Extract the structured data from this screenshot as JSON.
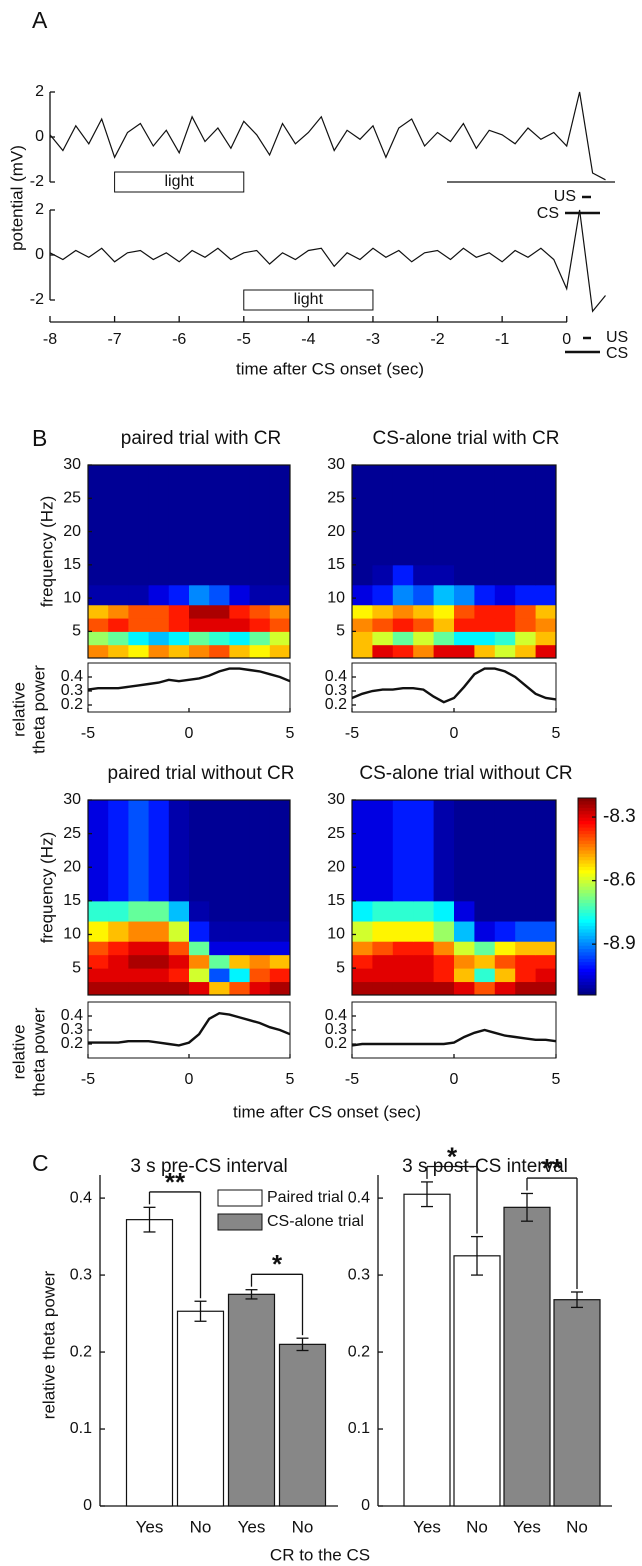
{
  "panel_labels": [
    "A",
    "B",
    "C"
  ],
  "figure_b_xlabel": "time after CS onset (sec)",
  "chart_data": [
    {
      "type": "trace",
      "xlabel": "time after CS onset (sec)",
      "ylabel": "potential (mV)",
      "color": "#111111",
      "x": [
        -8,
        -7.8,
        -7.6,
        -7.4,
        -7.2,
        -7,
        -6.8,
        -6.6,
        -6.4,
        -6.2,
        -6,
        -5.8,
        -5.6,
        -5.4,
        -5.2,
        -5,
        -4.8,
        -4.6,
        -4.4,
        -4.2,
        -4,
        -3.8,
        -3.6,
        -3.4,
        -3.2,
        -3,
        -2.8,
        -2.6,
        -2.4,
        -2.2,
        -2,
        -1.8,
        -1.6,
        -1.4,
        -1.2,
        -1,
        -0.8,
        -0.6,
        -0.4,
        -0.2,
        0,
        0.2,
        0.4,
        0.6
      ],
      "xlim": [
        -8,
        0.67
      ],
      "xticks": [
        -8,
        -7,
        -6,
        -5,
        -4,
        -3,
        -2,
        -1,
        0
      ],
      "ylim": [
        -2,
        2
      ],
      "yticks": [
        -2,
        0,
        2
      ],
      "series": [
        {
          "values": [
            0.1,
            -0.6,
            0.5,
            -0.3,
            0.8,
            -0.9,
            0.2,
            0.6,
            -0.4,
            0.3,
            -0.7,
            0.9,
            -0.2,
            0.4,
            -0.5,
            0.7,
            0.1,
            -0.8,
            0.6,
            -0.3,
            0.2,
            0.9,
            -0.6,
            0.3,
            -0.1,
            0.5,
            -0.9,
            0.4,
            0.8,
            -0.4,
            0.2,
            -0.2,
            0.6,
            -0.5,
            0.3,
            0.1,
            -0.3,
            0.4,
            -0.1,
            0.2,
            -0.4,
            2.0,
            -1.6,
            -1.9
          ],
          "light": {
            "label": "light",
            "start": -7,
            "end": -5
          },
          "markers": [
            "US",
            "CS"
          ]
        },
        {
          "values": [
            0.1,
            -0.2,
            0.2,
            -0.1,
            0.3,
            -0.3,
            0.1,
            0.2,
            -0.2,
            0.1,
            -0.3,
            0.2,
            -0.1,
            0.3,
            -0.2,
            0.1,
            0.2,
            -0.4,
            0.1,
            -0.2,
            0.2,
            0.3,
            -0.5,
            0.1,
            -0.2,
            0.3,
            -0.1,
            0.2,
            -0.3,
            0.1,
            0.2,
            -0.2,
            0.3,
            -0.1,
            0.1,
            -0.3,
            0.2,
            -0.1,
            0.3,
            -0.2,
            -1.5,
            2.0,
            -2.5,
            -1.8
          ],
          "light": {
            "label": "light",
            "start": -5,
            "end": -3
          },
          "markers": [
            "US",
            "CS"
          ]
        }
      ]
    },
    {
      "type": "heatmap",
      "title": "paired trial with CR",
      "ylabel": "frequency (Hz)",
      "x": [
        -5,
        -4,
        -3,
        -2,
        -1,
        0,
        1,
        2,
        3,
        4,
        5
      ],
      "y": [
        1,
        3,
        5,
        7,
        9,
        12,
        15,
        30
      ],
      "ylim": [
        1,
        30
      ],
      "yticks": [
        5,
        10,
        15,
        20,
        25,
        30
      ],
      "z": [
        [
          -8.45,
          -8.5,
          -8.55,
          -8.45,
          -8.5,
          -8.45,
          -8.4,
          -8.5,
          -8.55,
          -8.5
        ],
        [
          -8.65,
          -8.7,
          -8.8,
          -8.85,
          -8.8,
          -8.7,
          -8.75,
          -8.8,
          -8.7,
          -8.6
        ],
        [
          -8.4,
          -8.35,
          -8.4,
          -8.4,
          -8.35,
          -8.3,
          -8.3,
          -8.3,
          -8.35,
          -8.4
        ],
        [
          -8.5,
          -8.45,
          -8.4,
          -8.4,
          -8.35,
          -8.25,
          -8.25,
          -8.35,
          -8.4,
          -8.45
        ],
        [
          -9.1,
          -9.1,
          -9.1,
          -9.05,
          -9.0,
          -8.9,
          -8.95,
          -9.05,
          -9.1,
          -9.1
        ],
        [
          -9.12,
          -9.12,
          -9.12,
          -9.12,
          -9.12,
          -9.12,
          -9.12,
          -9.12,
          -9.12,
          -9.12
        ],
        [
          -9.12,
          -9.12,
          -9.12,
          -9.12,
          -9.12,
          -9.12,
          -9.12,
          -9.12,
          -9.12,
          -9.12
        ]
      ]
    },
    {
      "type": "heatmap",
      "title": "CS-alone trial with CR",
      "x": [
        -5,
        -4,
        -3,
        -2,
        -1,
        0,
        1,
        2,
        3,
        4,
        5
      ],
      "y": [
        1,
        3,
        5,
        7,
        9,
        12,
        15,
        30
      ],
      "ylim": [
        1,
        30
      ],
      "yticks": [
        5,
        10,
        15,
        20,
        25,
        30
      ],
      "z": [
        [
          -8.5,
          -8.3,
          -8.35,
          -8.45,
          -8.3,
          -8.3,
          -8.5,
          -8.6,
          -8.5,
          -8.3
        ],
        [
          -8.5,
          -8.6,
          -8.7,
          -8.6,
          -8.7,
          -8.8,
          -8.8,
          -8.75,
          -8.6,
          -8.5
        ],
        [
          -8.45,
          -8.4,
          -8.35,
          -8.4,
          -8.5,
          -8.35,
          -8.35,
          -8.35,
          -8.4,
          -8.45
        ],
        [
          -8.55,
          -8.5,
          -8.45,
          -8.5,
          -8.55,
          -8.4,
          -8.35,
          -8.35,
          -8.4,
          -8.5
        ],
        [
          -9.05,
          -9.0,
          -8.9,
          -8.95,
          -8.85,
          -8.9,
          -9.0,
          -9.05,
          -9.0,
          -9.0
        ],
        [
          -9.12,
          -9.1,
          -9.0,
          -9.1,
          -9.1,
          -9.12,
          -9.12,
          -9.12,
          -9.12,
          -9.12
        ],
        [
          -9.12,
          -9.12,
          -9.12,
          -9.12,
          -9.12,
          -9.12,
          -9.12,
          -9.12,
          -9.12,
          -9.12
        ]
      ]
    },
    {
      "type": "heatmap",
      "title": "paired trial without CR",
      "ylabel": "frequency (Hz)",
      "x": [
        -5,
        -4,
        -3,
        -2,
        -1,
        0,
        1,
        2,
        3,
        4,
        5
      ],
      "y": [
        1,
        3,
        5,
        7,
        9,
        12,
        15,
        30
      ],
      "ylim": [
        1,
        30
      ],
      "yticks": [
        5,
        10,
        15,
        20,
        25,
        30
      ],
      "z": [
        [
          -8.25,
          -8.25,
          -8.25,
          -8.25,
          -8.25,
          -8.3,
          -8.5,
          -8.4,
          -8.3,
          -8.25
        ],
        [
          -8.3,
          -8.3,
          -8.3,
          -8.3,
          -8.35,
          -8.6,
          -8.95,
          -8.8,
          -8.4,
          -8.35
        ],
        [
          -8.35,
          -8.3,
          -8.25,
          -8.25,
          -8.3,
          -8.45,
          -8.7,
          -8.5,
          -8.45,
          -8.5
        ],
        [
          -8.4,
          -8.35,
          -8.3,
          -8.3,
          -8.4,
          -8.7,
          -9.05,
          -9.05,
          -9.05,
          -9.05
        ],
        [
          -8.55,
          -8.5,
          -8.45,
          -8.45,
          -8.6,
          -9.0,
          -9.1,
          -9.1,
          -9.1,
          -9.1
        ],
        [
          -8.75,
          -8.75,
          -8.7,
          -8.7,
          -8.85,
          -9.1,
          -9.12,
          -9.12,
          -9.12,
          -9.12
        ],
        [
          -9.05,
          -9.0,
          -8.95,
          -9.0,
          -9.1,
          -9.12,
          -9.12,
          -9.12,
          -9.12,
          -9.12
        ]
      ]
    },
    {
      "type": "heatmap",
      "title": "CS-alone trial without CR",
      "x": [
        -5,
        -4,
        -3,
        -2,
        -1,
        0,
        1,
        2,
        3,
        4,
        5
      ],
      "y": [
        1,
        3,
        5,
        7,
        9,
        12,
        15,
        30
      ],
      "ylim": [
        1,
        30
      ],
      "yticks": [
        5,
        10,
        15,
        20,
        25,
        30
      ],
      "z": [
        [
          -8.25,
          -8.25,
          -8.25,
          -8.25,
          -8.25,
          -8.3,
          -8.4,
          -8.3,
          -8.25,
          -8.25
        ],
        [
          -8.3,
          -8.3,
          -8.3,
          -8.3,
          -8.35,
          -8.5,
          -8.75,
          -8.5,
          -8.35,
          -8.3
        ],
        [
          -8.35,
          -8.3,
          -8.3,
          -8.3,
          -8.35,
          -8.45,
          -8.5,
          -8.4,
          -8.35,
          -8.35
        ],
        [
          -8.45,
          -8.4,
          -8.35,
          -8.35,
          -8.45,
          -8.6,
          -8.7,
          -8.55,
          -8.5,
          -8.5
        ],
        [
          -8.6,
          -8.55,
          -8.55,
          -8.55,
          -8.65,
          -8.85,
          -9.05,
          -9.0,
          -8.95,
          -8.95
        ],
        [
          -8.8,
          -8.75,
          -8.75,
          -8.75,
          -8.8,
          -9.05,
          -9.12,
          -9.12,
          -9.12,
          -9.12
        ],
        [
          -9.05,
          -9.05,
          -9.0,
          -9.0,
          -9.1,
          -9.12,
          -9.12,
          -9.12,
          -9.12,
          -9.12
        ]
      ]
    },
    {
      "type": "line",
      "ylabel": [
        "relative",
        "theta power"
      ],
      "color": "#111111",
      "x": [
        -5,
        -4.5,
        -4,
        -3.5,
        -3,
        -2.5,
        -2,
        -1.5,
        -1,
        -0.5,
        0,
        0.5,
        1,
        1.5,
        2,
        2.5,
        3,
        3.5,
        4,
        4.5,
        5
      ],
      "values": [
        0.31,
        0.32,
        0.32,
        0.32,
        0.33,
        0.34,
        0.35,
        0.36,
        0.38,
        0.37,
        0.38,
        0.39,
        0.41,
        0.44,
        0.46,
        0.46,
        0.45,
        0.44,
        0.42,
        0.4,
        0.37
      ],
      "xlim": [
        -5,
        5
      ],
      "xticks": [
        -5,
        0,
        5
      ],
      "ylim": [
        0.15,
        0.5
      ],
      "yticks": [
        0.2,
        0.3,
        0.4
      ]
    },
    {
      "type": "line",
      "color": "#111111",
      "x": [
        -5,
        -4.5,
        -4,
        -3.5,
        -3,
        -2.5,
        -2,
        -1.5,
        -1,
        -0.5,
        0,
        0.5,
        1,
        1.5,
        2,
        2.5,
        3,
        3.5,
        4,
        4.5,
        5
      ],
      "values": [
        0.25,
        0.28,
        0.3,
        0.31,
        0.31,
        0.32,
        0.32,
        0.31,
        0.26,
        0.22,
        0.25,
        0.33,
        0.42,
        0.46,
        0.46,
        0.44,
        0.4,
        0.34,
        0.28,
        0.25,
        0.24
      ],
      "xlim": [
        -5,
        5
      ],
      "xticks": [
        -5,
        0,
        5
      ],
      "ylim": [
        0.15,
        0.5
      ],
      "yticks": [
        0.2,
        0.3,
        0.4
      ]
    },
    {
      "type": "line",
      "ylabel": [
        "relative",
        "theta power"
      ],
      "color": "#111111",
      "x": [
        -5,
        -4.5,
        -4,
        -3.5,
        -3,
        -2.5,
        -2,
        -1.5,
        -1,
        -0.5,
        0,
        0.5,
        1,
        1.5,
        2,
        2.5,
        3,
        3.5,
        4,
        4.5,
        5
      ],
      "values": [
        0.21,
        0.21,
        0.21,
        0.21,
        0.22,
        0.22,
        0.22,
        0.21,
        0.2,
        0.19,
        0.21,
        0.27,
        0.38,
        0.42,
        0.41,
        0.39,
        0.37,
        0.35,
        0.32,
        0.3,
        0.27
      ],
      "xlim": [
        -5,
        5
      ],
      "xticks": [
        -5,
        0,
        5
      ],
      "ylim": [
        0.1,
        0.5
      ],
      "yticks": [
        0.2,
        0.3,
        0.4
      ]
    },
    {
      "type": "line",
      "color": "#111111",
      "x": [
        -5,
        -4.5,
        -4,
        -3.5,
        -3,
        -2.5,
        -2,
        -1.5,
        -1,
        -0.5,
        0,
        0.5,
        1,
        1.5,
        2,
        2.5,
        3,
        3.5,
        4,
        4.5,
        5
      ],
      "values": [
        0.19,
        0.2,
        0.2,
        0.2,
        0.2,
        0.2,
        0.2,
        0.2,
        0.2,
        0.2,
        0.21,
        0.25,
        0.28,
        0.3,
        0.28,
        0.26,
        0.25,
        0.24,
        0.23,
        0.23,
        0.22
      ],
      "xlim": [
        -5,
        5
      ],
      "xticks": [
        -5,
        0,
        5
      ],
      "ylim": [
        0.1,
        0.5
      ],
      "yticks": [
        0.2,
        0.3,
        0.4
      ]
    },
    {
      "type": "colorbar",
      "colormap": "jet",
      "clim": [
        -9.14,
        -8.21
      ],
      "ticks": [
        -8.3,
        -8.6,
        -8.9
      ]
    },
    {
      "type": "bar",
      "title": "3 s pre-CS interval",
      "ylabel": "relative theta power",
      "xlabel": "CR to the CS",
      "legend": "top-right",
      "categories": [
        "Yes",
        "No",
        "Yes",
        "No"
      ],
      "ylim": [
        0,
        0.43
      ],
      "yticks": [
        0,
        0.1,
        0.2,
        0.3,
        0.4
      ],
      "series": [
        {
          "name": "Paired trial",
          "color": "#ffffff",
          "values": [
            0.372,
            0.253,
            null,
            null
          ],
          "errors": [
            0.016,
            0.013,
            null,
            null
          ]
        },
        {
          "name": "CS-alone trial",
          "color": "#878787",
          "values": [
            null,
            null,
            0.275,
            0.21
          ],
          "errors": [
            null,
            null,
            0.006,
            0.008
          ]
        }
      ],
      "significance": [
        {
          "from": 0,
          "to": 1,
          "label": "**"
        },
        {
          "from": 2,
          "to": 3,
          "label": "*"
        }
      ]
    },
    {
      "type": "bar",
      "title": "3 s post-CS interval",
      "categories": [
        "Yes",
        "No",
        "Yes",
        "No"
      ],
      "ylim": [
        0,
        0.43
      ],
      "yticks": [
        0,
        0.1,
        0.2,
        0.3,
        0.4
      ],
      "series": [
        {
          "name": "Paired trial",
          "color": "#ffffff",
          "values": [
            0.405,
            0.325,
            null,
            null
          ],
          "errors": [
            0.016,
            0.025,
            null,
            null
          ]
        },
        {
          "name": "CS-alone trial",
          "color": "#878787",
          "values": [
            null,
            null,
            0.388,
            0.268
          ],
          "errors": [
            null,
            null,
            0.018,
            0.01
          ]
        }
      ],
      "significance": [
        {
          "from": 0,
          "to": 1,
          "label": "*"
        },
        {
          "from": 2,
          "to": 3,
          "label": "**"
        }
      ]
    }
  ]
}
